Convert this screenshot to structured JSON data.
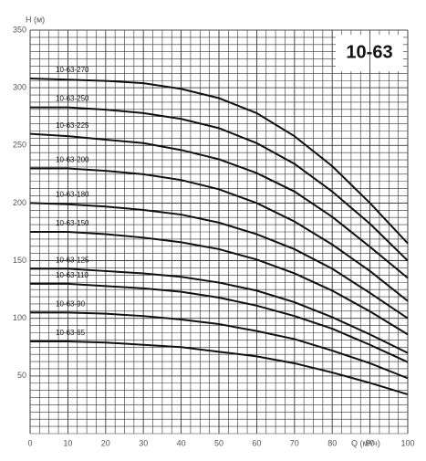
{
  "chart_data": {
    "type": "line",
    "box_label": "10-63",
    "x_label": "Q (м³/ч)",
    "y_label": "H (м)",
    "x": [
      0,
      10,
      20,
      30,
      40,
      50,
      60,
      70,
      80,
      90,
      100
    ],
    "series": [
      {
        "name": "10-63-270",
        "color": "#111111",
        "values": [
          308,
          307,
          306,
          304,
          299,
          291,
          278,
          258,
          232,
          200,
          165
        ]
      },
      {
        "name": "10-63-250",
        "color": "#111111",
        "values": [
          283,
          283,
          281,
          278,
          273,
          265,
          252,
          234,
          210,
          182,
          150
        ]
      },
      {
        "name": "10-63-225",
        "color": "#111111",
        "values": [
          260,
          258,
          255,
          252,
          246,
          238,
          226,
          210,
          188,
          162,
          135
        ]
      },
      {
        "name": "10-63-200",
        "color": "#111111",
        "values": [
          230,
          230,
          228,
          225,
          220,
          212,
          200,
          184,
          164,
          141,
          115
        ]
      },
      {
        "name": "10-63-180",
        "color": "#111111",
        "values": [
          200,
          199,
          197,
          194,
          190,
          183,
          173,
          160,
          143,
          122,
          100
        ]
      },
      {
        "name": "10-63-150",
        "color": "#111111",
        "values": [
          175,
          175,
          173,
          170,
          166,
          160,
          151,
          139,
          124,
          106,
          86
        ]
      },
      {
        "name": "10-63-125",
        "color": "#111111",
        "values": [
          143,
          143,
          141,
          139,
          136,
          131,
          124,
          114,
          101,
          86,
          70
        ]
      },
      {
        "name": "10-63-110",
        "color": "#111111",
        "values": [
          130,
          130,
          128,
          126,
          123,
          118,
          111,
          102,
          91,
          77,
          62
        ]
      },
      {
        "name": "10-63-90",
        "color": "#111111",
        "values": [
          105,
          105,
          104,
          102,
          99,
          95,
          89,
          82,
          72,
          61,
          48
        ]
      },
      {
        "name": "10-63-65",
        "color": "#111111",
        "values": [
          80,
          80,
          79,
          77,
          75,
          71,
          67,
          61,
          53,
          44,
          34
        ]
      }
    ],
    "xlim": [
      0,
      100
    ],
    "ylim": [
      0,
      350
    ],
    "xticks": [
      0,
      10,
      20,
      30,
      40,
      50,
      60,
      70,
      80,
      90,
      100
    ],
    "yticks": [
      50,
      100,
      150,
      200,
      250,
      300,
      350
    ],
    "grid": true,
    "minor_grid": {
      "x": 2.5,
      "y": 6.25
    }
  }
}
